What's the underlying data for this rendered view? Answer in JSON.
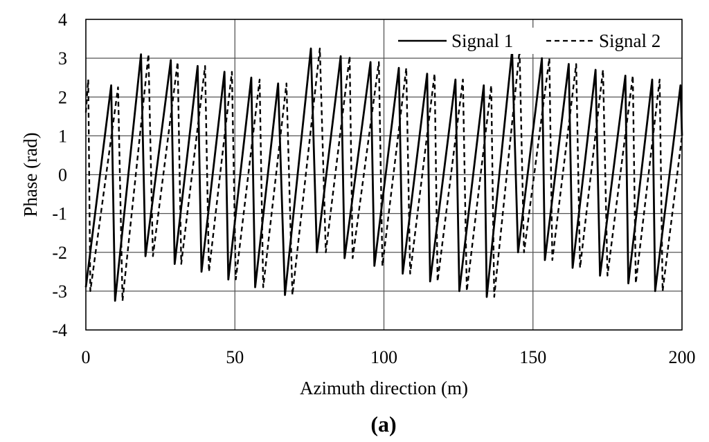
{
  "chart_data": {
    "type": "line",
    "title": "",
    "panel_label": "(a)",
    "xlabel": "Azimuth direction (m)",
    "ylabel": "Phase (rad)",
    "xlim": [
      0,
      200
    ],
    "ylim": [
      -4,
      4
    ],
    "xticks": [
      0,
      50,
      100,
      150,
      200
    ],
    "yticks": [
      4,
      3,
      2,
      1,
      0,
      -1,
      -2,
      -3,
      -4
    ],
    "xtick_labels": [
      "0",
      "50",
      "100",
      "150",
      "200"
    ],
    "ytick_labels": [
      "4",
      "3",
      "2",
      "1",
      "0",
      "-1",
      "-2",
      "-3",
      "-4"
    ],
    "grid": true,
    "legend_position": "top-right",
    "series": [
      {
        "name": "Signal 1",
        "style": "solid",
        "color": "#000000",
        "points": [
          [
            0,
            -2.9
          ],
          [
            8.5,
            2.3
          ],
          [
            9.8,
            -3.25
          ],
          [
            18.5,
            3.1
          ],
          [
            20,
            -2.1
          ],
          [
            28.5,
            2.95
          ],
          [
            29.8,
            -2.3
          ],
          [
            37.5,
            2.8
          ],
          [
            38.8,
            -2.5
          ],
          [
            46.5,
            2.65
          ],
          [
            47.8,
            -2.7
          ],
          [
            55.5,
            2.5
          ],
          [
            56.8,
            -2.9
          ],
          [
            64.5,
            2.35
          ],
          [
            66.8,
            -3.1
          ],
          [
            75.5,
            3.25
          ],
          [
            77.5,
            -2.0
          ],
          [
            85.5,
            3.05
          ],
          [
            86.8,
            -2.15
          ],
          [
            95.5,
            2.9
          ],
          [
            96.8,
            -2.35
          ],
          [
            105,
            2.75
          ],
          [
            106.3,
            -2.55
          ],
          [
            114.5,
            2.6
          ],
          [
            115.5,
            -2.75
          ],
          [
            124,
            2.45
          ],
          [
            125.3,
            -3.0
          ],
          [
            133.5,
            2.3
          ],
          [
            134.5,
            -3.15
          ],
          [
            143,
            3.2
          ],
          [
            145,
            -2.0
          ],
          [
            153,
            3.0
          ],
          [
            154,
            -2.2
          ],
          [
            162,
            2.85
          ],
          [
            163.3,
            -2.4
          ],
          [
            171,
            2.7
          ],
          [
            172.5,
            -2.6
          ],
          [
            181,
            2.55
          ],
          [
            182,
            -2.8
          ],
          [
            190,
            2.45
          ],
          [
            191,
            -3.0
          ],
          [
            199.5,
            2.3
          ],
          [
            200,
            1.0
          ]
        ]
      },
      {
        "name": "Signal 2",
        "style": "dashed",
        "color": "#000000",
        "points": [
          [
            0,
            1.6
          ],
          [
            0.8,
            2.45
          ],
          [
            1.5,
            -3.0
          ],
          [
            10.8,
            2.25
          ],
          [
            12.3,
            -3.25
          ],
          [
            21,
            3.1
          ],
          [
            22.5,
            -2.1
          ],
          [
            30.8,
            2.9
          ],
          [
            32,
            -2.3
          ],
          [
            40,
            2.8
          ],
          [
            41.3,
            -2.5
          ],
          [
            49,
            2.65
          ],
          [
            50.3,
            -2.7
          ],
          [
            58.3,
            2.45
          ],
          [
            59.5,
            -2.9
          ],
          [
            67.3,
            2.35
          ],
          [
            69.3,
            -3.1
          ],
          [
            78.5,
            3.25
          ],
          [
            80.5,
            -2.0
          ],
          [
            88.5,
            3.05
          ],
          [
            89.5,
            -2.15
          ],
          [
            98.3,
            2.9
          ],
          [
            99.5,
            -2.35
          ],
          [
            107.5,
            2.75
          ],
          [
            108.8,
            -2.55
          ],
          [
            117,
            2.6
          ],
          [
            118,
            -2.75
          ],
          [
            126.5,
            2.45
          ],
          [
            127.8,
            -3.0
          ],
          [
            136,
            2.3
          ],
          [
            137,
            -3.15
          ],
          [
            145.5,
            3.2
          ],
          [
            147,
            -2.0
          ],
          [
            155.5,
            3.0
          ],
          [
            156.5,
            -2.2
          ],
          [
            164.5,
            2.85
          ],
          [
            165.8,
            -2.4
          ],
          [
            173.5,
            2.7
          ],
          [
            175,
            -2.6
          ],
          [
            183.5,
            2.55
          ],
          [
            184.5,
            -2.8
          ],
          [
            192.5,
            2.45
          ],
          [
            193.5,
            -3.0
          ],
          [
            200,
            1.0
          ]
        ]
      }
    ]
  }
}
